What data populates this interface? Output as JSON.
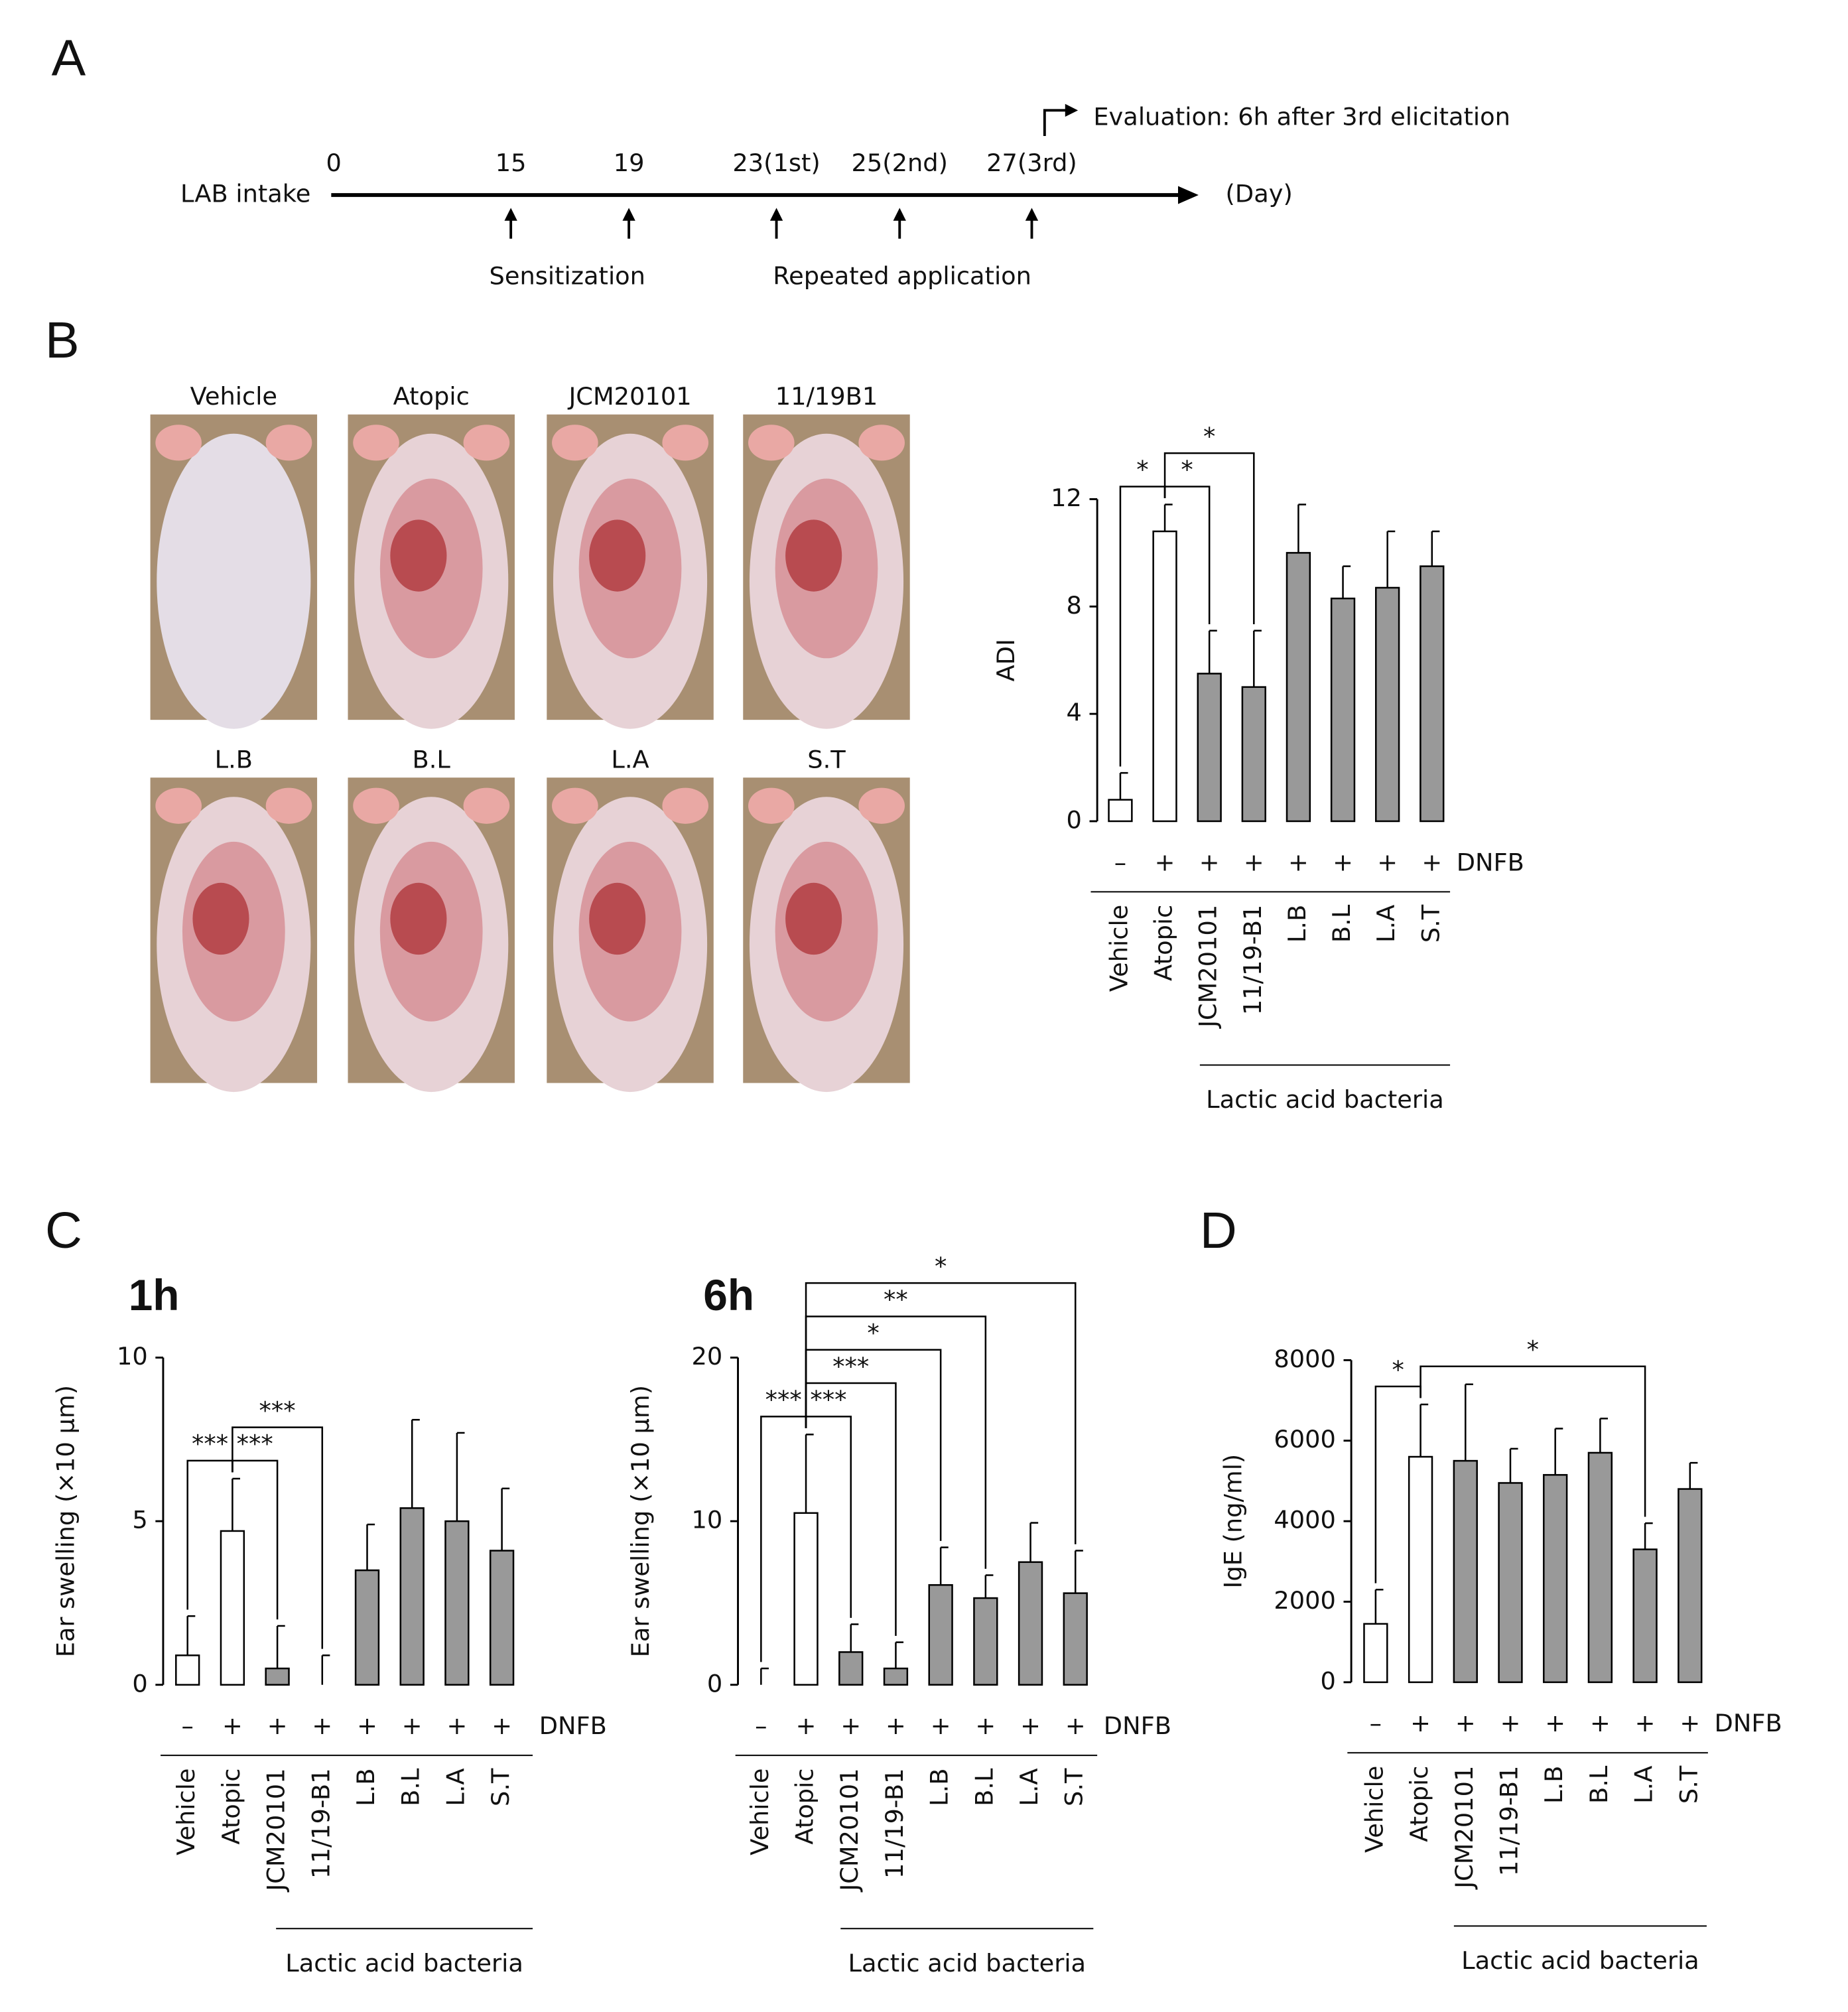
{
  "panel_labels": [
    "A",
    "B",
    "C",
    "D"
  ],
  "timeline": {
    "intake_label": "LAB intake",
    "days": [
      "0",
      "15",
      "19",
      "23(1st)",
      "25(2nd)",
      "27(3rd)"
    ],
    "unit": "(Day)",
    "sensitization": "Sensitization",
    "repeated": "Repeated application",
    "evaluation": "Evaluation: 6h after 3rd elicitation"
  },
  "photos": {
    "labels": [
      "Vehicle",
      "Atopic",
      "JCM20101",
      "11/19B1",
      "L.B",
      "B.L",
      "L.A",
      "S.T"
    ]
  },
  "chart_data": [
    {
      "type": "bar",
      "y_label": "ADI",
      "categories": [
        "Vehicle",
        "Atopic",
        "JCM20101",
        "11/19-B1",
        "L.B",
        "B.L",
        "L.A",
        "S.T"
      ],
      "values": [
        0.8,
        10.8,
        5.5,
        5.0,
        10.0,
        8.3,
        8.7,
        9.5
      ],
      "errors": [
        1.0,
        1.0,
        1.6,
        2.1,
        1.8,
        1.2,
        2.1,
        1.3
      ],
      "colors": [
        "#ffffff",
        "#ffffff",
        "#999999",
        "#999999",
        "#999999",
        "#999999",
        "#999999",
        "#999999"
      ],
      "ylim": [
        0,
        12
      ],
      "yticks": [
        0,
        4,
        8,
        12
      ],
      "treatment": {
        "label": "DNFB",
        "signs": [
          "–",
          "+",
          "+",
          "+",
          "+",
          "+",
          "+",
          "+"
        ]
      },
      "group_label": "Lactic acid bacteria",
      "significance": [
        {
          "from": "Vehicle",
          "to": "Atopic",
          "label": "*"
        },
        {
          "from": "Atopic",
          "to": "JCM20101",
          "label": "*"
        },
        {
          "from": "Atopic",
          "to": "11/19-B1",
          "label": "*"
        }
      ]
    },
    {
      "type": "bar",
      "title": "1h",
      "y_label": "Ear swelling (×10 μm)",
      "categories": [
        "Vehicle",
        "Atopic",
        "JCM20101",
        "11/19-B1",
        "L.B",
        "B.L",
        "L.A",
        "S.T"
      ],
      "values": [
        0.9,
        4.7,
        0.5,
        0,
        3.5,
        5.4,
        5.0,
        4.1
      ],
      "errors": [
        1.2,
        1.6,
        1.3,
        0.9,
        1.4,
        2.7,
        2.7,
        1.9
      ],
      "colors": [
        "#ffffff",
        "#ffffff",
        "#999999",
        "#999999",
        "#999999",
        "#999999",
        "#999999",
        "#999999"
      ],
      "ylim": [
        0,
        10
      ],
      "yticks": [
        0,
        5,
        10
      ],
      "treatment": {
        "label": "DNFB",
        "signs": [
          "–",
          "+",
          "+",
          "+",
          "+",
          "+",
          "+",
          "+"
        ]
      },
      "group_label": "Lactic acid bacteria",
      "significance": [
        {
          "from": "Vehicle",
          "to": "Atopic",
          "label": "***"
        },
        {
          "from": "Atopic",
          "to": "JCM20101",
          "label": "***"
        },
        {
          "from": "Atopic",
          "to": "11/19-B1",
          "label": "***"
        }
      ]
    },
    {
      "type": "bar",
      "title": "6h",
      "y_label": "Ear swelling (×10 μm)",
      "categories": [
        "Vehicle",
        "Atopic",
        "JCM20101",
        "11/19-B1",
        "L.B",
        "B.L",
        "L.A",
        "S.T"
      ],
      "values": [
        0,
        10.5,
        2.0,
        1.0,
        6.1,
        5.3,
        7.5,
        5.6
      ],
      "errors": [
        1.0,
        4.8,
        1.7,
        1.6,
        2.3,
        1.4,
        2.4,
        2.6
      ],
      "colors": [
        "#ffffff",
        "#ffffff",
        "#999999",
        "#999999",
        "#999999",
        "#999999",
        "#999999",
        "#999999"
      ],
      "ylim": [
        0,
        20
      ],
      "yticks": [
        0,
        10,
        20
      ],
      "treatment": {
        "label": "DNFB",
        "signs": [
          "–",
          "+",
          "+",
          "+",
          "+",
          "+",
          "+",
          "+"
        ]
      },
      "group_label": "Lactic acid bacteria",
      "significance": [
        {
          "from": "Vehicle",
          "to": "Atopic",
          "label": "***"
        },
        {
          "from": "Atopic",
          "to": "JCM20101",
          "label": "***"
        },
        {
          "from": "Atopic",
          "to": "11/19-B1",
          "label": "***"
        },
        {
          "from": "Atopic",
          "to": "L.B",
          "label": "*"
        },
        {
          "from": "Atopic",
          "to": "B.L",
          "label": "**"
        },
        {
          "from": "Atopic",
          "to": "S.T",
          "label": "*"
        }
      ]
    },
    {
      "type": "bar",
      "y_label": "IgE (ng/ml)",
      "categories": [
        "Vehicle",
        "Atopic",
        "JCM20101",
        "11/19-B1",
        "L.B",
        "B.L",
        "L.A",
        "S.T"
      ],
      "values": [
        1450,
        5600,
        5500,
        4950,
        5150,
        5700,
        3300,
        4800
      ],
      "errors": [
        850,
        1300,
        1900,
        850,
        1150,
        850,
        650,
        650
      ],
      "colors": [
        "#ffffff",
        "#ffffff",
        "#999999",
        "#999999",
        "#999999",
        "#999999",
        "#999999",
        "#999999"
      ],
      "ylim": [
        0,
        8000
      ],
      "yticks": [
        0,
        2000,
        4000,
        6000,
        8000
      ],
      "treatment": {
        "label": "DNFB",
        "signs": [
          "–",
          "+",
          "+",
          "+",
          "+",
          "+",
          "+",
          "+"
        ]
      },
      "group_label": "Lactic acid bacteria",
      "significance": [
        {
          "from": "Vehicle",
          "to": "Atopic",
          "label": "*"
        },
        {
          "from": "Atopic",
          "to": "L.A",
          "label": "*"
        }
      ]
    }
  ]
}
